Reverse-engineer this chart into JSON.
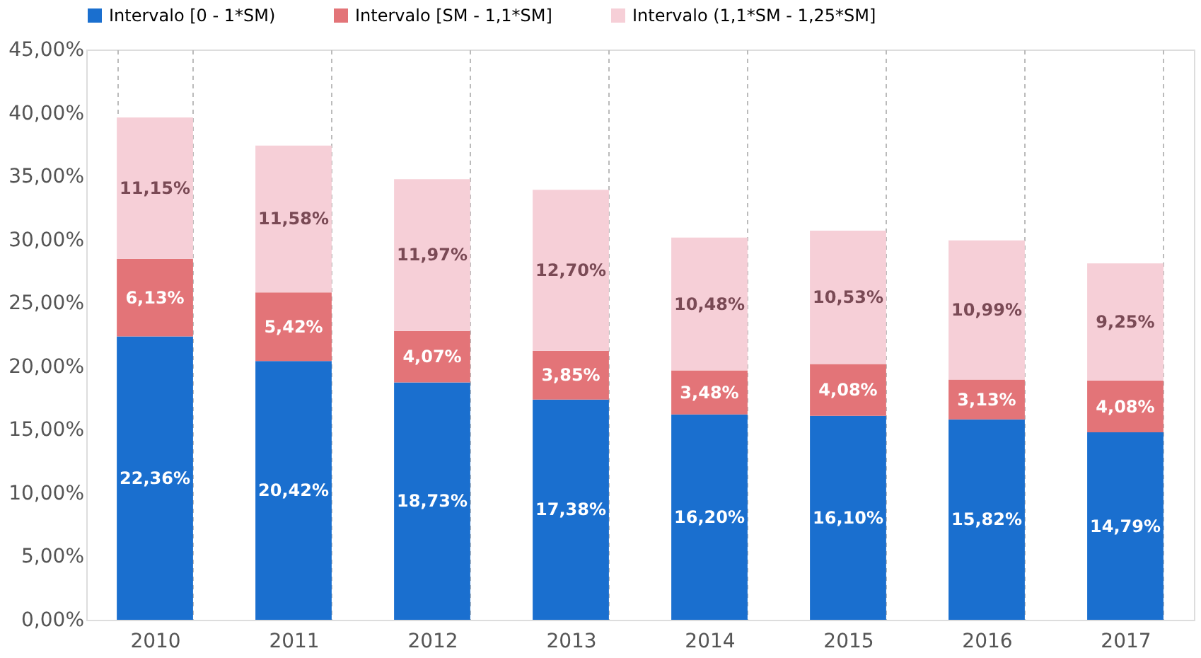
{
  "chart_data": {
    "type": "bar",
    "stacked": true,
    "legend": "top",
    "grid": "x",
    "categories": [
      "2010",
      "2011",
      "2012",
      "2013",
      "2014",
      "2015",
      "2016",
      "2017"
    ],
    "ylim": [
      0,
      45
    ],
    "yticks": [
      {
        "value": 0,
        "label": "0,00%"
      },
      {
        "value": 5,
        "label": "5,00%"
      },
      {
        "value": 10,
        "label": "10,00%"
      },
      {
        "value": 15,
        "label": "15,00%"
      },
      {
        "value": 20,
        "label": "20,00%"
      },
      {
        "value": 25,
        "label": "25,00%"
      },
      {
        "value": 30,
        "label": "30,00%"
      },
      {
        "value": 35,
        "label": "35,00%"
      },
      {
        "value": 40,
        "label": "40,00%"
      },
      {
        "value": 45,
        "label": "45,00%"
      }
    ],
    "series": [
      {
        "name": "Intervalo [0 - 1*SM)",
        "color": "#1a6fcf",
        "values": [
          22.36,
          20.42,
          18.73,
          17.38,
          16.2,
          16.1,
          15.82,
          14.79
        ],
        "value_labels": [
          "22,36%",
          "20,42%",
          "18,73%",
          "17,38%",
          "16,20%",
          "16,10%",
          "15,82%",
          "14,79%"
        ]
      },
      {
        "name": "Intervalo [SM - 1,1*SM]",
        "color": "#e37478",
        "values": [
          6.13,
          5.42,
          4.07,
          3.85,
          3.48,
          4.08,
          3.13,
          4.08
        ],
        "value_labels": [
          "6,13%",
          "5,42%",
          "4,07%",
          "3,85%",
          "3,48%",
          "4,08%",
          "3,13%",
          "4,08%"
        ]
      },
      {
        "name": "Intervalo (1,1*SM  - 1,25*SM]",
        "color": "#f6cfd7",
        "values": [
          11.15,
          11.58,
          11.97,
          12.7,
          10.48,
          10.53,
          10.99,
          9.25
        ],
        "value_labels": [
          "11,15%",
          "11,58%",
          "11,97%",
          "12,70%",
          "10,48%",
          "10,53%",
          "10,99%",
          "9,25%"
        ]
      }
    ]
  }
}
